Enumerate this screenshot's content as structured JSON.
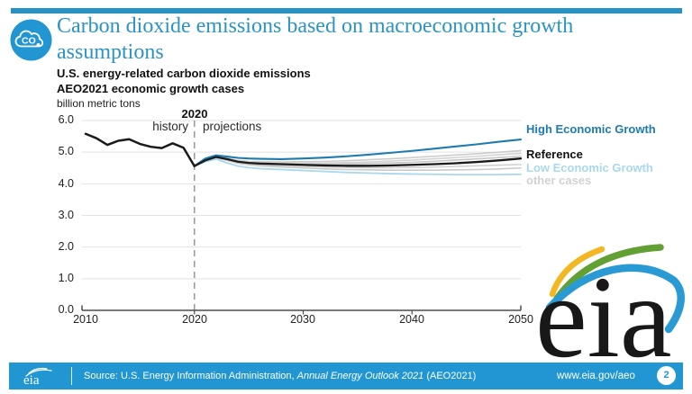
{
  "header": {
    "title": "Carbon dioxide emissions based on macroeconomic growth assumptions",
    "subtitle_line1": "U.S. energy-related carbon dioxide emissions",
    "subtitle_line2": "AEO2021 economic growth cases",
    "units_label": "billion metric tons",
    "icon": "co2-cloud-icon",
    "icon_text": "CO",
    "accent_bar_color": "#2591c4",
    "title_color": "#2a94c5",
    "icon_color": "#2196d2"
  },
  "chart_data": {
    "type": "line",
    "title": "U.S. energy-related carbon dioxide emissions",
    "subtitle": "AEO2021 economic growth cases",
    "ylabel": "billion metric tons",
    "xlim": [
      2010,
      2050
    ],
    "ylim": [
      0,
      6
    ],
    "grid": true,
    "ytick_values": [
      6,
      5,
      4,
      3,
      2,
      1,
      0
    ],
    "ytick_labels": [
      "6.0",
      "5.0",
      "4.0",
      "3.0",
      "2.0",
      "1.0",
      "0.0"
    ],
    "xtick_values": [
      2010,
      2020,
      2030,
      2040,
      2050
    ],
    "xtick_labels": [
      "2010",
      "2020",
      "2030",
      "2040",
      "2050"
    ],
    "annotations": {
      "divider_year": 2020,
      "divider_label": "2020",
      "history_label": "history",
      "projections_label": "projections"
    },
    "colors": {
      "gridline": "#e2e2e2",
      "axis": "#4d4d4d",
      "divider": "#9b9b9b",
      "history": "#1a1a1a"
    },
    "history": {
      "name": "history",
      "color": "#1a1a1a",
      "x": [
        2010,
        2011,
        2012,
        2013,
        2014,
        2015,
        2016,
        2017,
        2018,
        2019,
        2020
      ],
      "values": [
        5.58,
        5.44,
        5.23,
        5.36,
        5.41,
        5.26,
        5.17,
        5.13,
        5.28,
        5.14,
        4.56
      ]
    },
    "projection_years": [
      2020,
      2021,
      2022,
      2023,
      2024,
      2025,
      2026,
      2028,
      2030,
      2032,
      2034,
      2036,
      2038,
      2040,
      2042,
      2044,
      2046,
      2048,
      2050
    ],
    "series": [
      {
        "name": "other case 1",
        "group": "other cases",
        "color": "#cccccc",
        "values": [
          4.56,
          4.76,
          4.87,
          4.81,
          4.74,
          4.71,
          4.7,
          4.69,
          4.7,
          4.71,
          4.73,
          4.76,
          4.79,
          4.83,
          4.87,
          4.91,
          4.95,
          5.0,
          5.05
        ]
      },
      {
        "name": "other case 2",
        "group": "other cases",
        "color": "#d4d4d4",
        "values": [
          4.56,
          4.75,
          4.86,
          4.8,
          4.73,
          4.69,
          4.67,
          4.66,
          4.66,
          4.66,
          4.67,
          4.69,
          4.72,
          4.75,
          4.79,
          4.83,
          4.87,
          4.92,
          4.96
        ]
      },
      {
        "name": "other case 3",
        "group": "other cases",
        "color": "#c7c7c7",
        "values": [
          4.56,
          4.75,
          4.85,
          4.79,
          4.71,
          4.67,
          4.65,
          4.63,
          4.62,
          4.62,
          4.63,
          4.64,
          4.66,
          4.68,
          4.71,
          4.75,
          4.79,
          4.83,
          4.87
        ]
      },
      {
        "name": "other case 4",
        "group": "other cases",
        "color": "#d0d0d0",
        "values": [
          4.56,
          4.73,
          4.83,
          4.76,
          4.68,
          4.63,
          4.6,
          4.57,
          4.55,
          4.53,
          4.52,
          4.51,
          4.51,
          4.52,
          4.53,
          4.55,
          4.57,
          4.59,
          4.61
        ]
      },
      {
        "name": "other case 5",
        "group": "other cases",
        "color": "#cacaca",
        "values": [
          4.56,
          4.72,
          4.82,
          4.74,
          4.65,
          4.6,
          4.57,
          4.53,
          4.5,
          4.47,
          4.45,
          4.44,
          4.43,
          4.43,
          4.43,
          4.44,
          4.45,
          4.47,
          4.5
        ]
      },
      {
        "name": "Low Economic Growth",
        "group": "low",
        "color": "#a8d8f0",
        "values": [
          4.56,
          4.7,
          4.78,
          4.66,
          4.56,
          4.51,
          4.48,
          4.45,
          4.42,
          4.39,
          4.36,
          4.34,
          4.32,
          4.31,
          4.3,
          4.29,
          4.29,
          4.29,
          4.3
        ]
      },
      {
        "name": "High Economic Growth",
        "group": "high",
        "color": "#1d7bb0",
        "values": [
          4.56,
          4.8,
          4.9,
          4.86,
          4.82,
          4.8,
          4.79,
          4.78,
          4.8,
          4.83,
          4.87,
          4.92,
          4.98,
          5.04,
          5.11,
          5.18,
          5.25,
          5.33,
          5.4
        ]
      },
      {
        "name": "Reference",
        "group": "reference",
        "color": "#1a1a1a",
        "values": [
          4.56,
          4.74,
          4.85,
          4.78,
          4.7,
          4.66,
          4.64,
          4.62,
          4.6,
          4.58,
          4.57,
          4.57,
          4.58,
          4.6,
          4.62,
          4.65,
          4.69,
          4.74,
          4.8
        ]
      }
    ]
  },
  "legend": {
    "items": [
      {
        "label": "High Economic Growth",
        "color": "#1d7bb0"
      },
      {
        "label": "Reference",
        "color": "#111111"
      },
      {
        "label": "Low Economic Growth",
        "color": "#a9d8ef"
      },
      {
        "label": "other cases",
        "color": "#d2d2d2"
      }
    ]
  },
  "footer": {
    "source_prefix": "Source: U.S. Energy Information Administration, ",
    "source_italic": "Annual Energy Outlook 2021",
    "source_suffix": " (AEO2021)",
    "url": "www.eia.gov/aeo",
    "page_number": "2",
    "bar_color": "#2196d2"
  },
  "branding": {
    "logo_text": "eia",
    "footer_logo_text": "eia",
    "logo_colors": {
      "yellow": "#f2b722",
      "green": "#63a033",
      "blue": "#2a9ad4",
      "text": "#181818"
    }
  }
}
